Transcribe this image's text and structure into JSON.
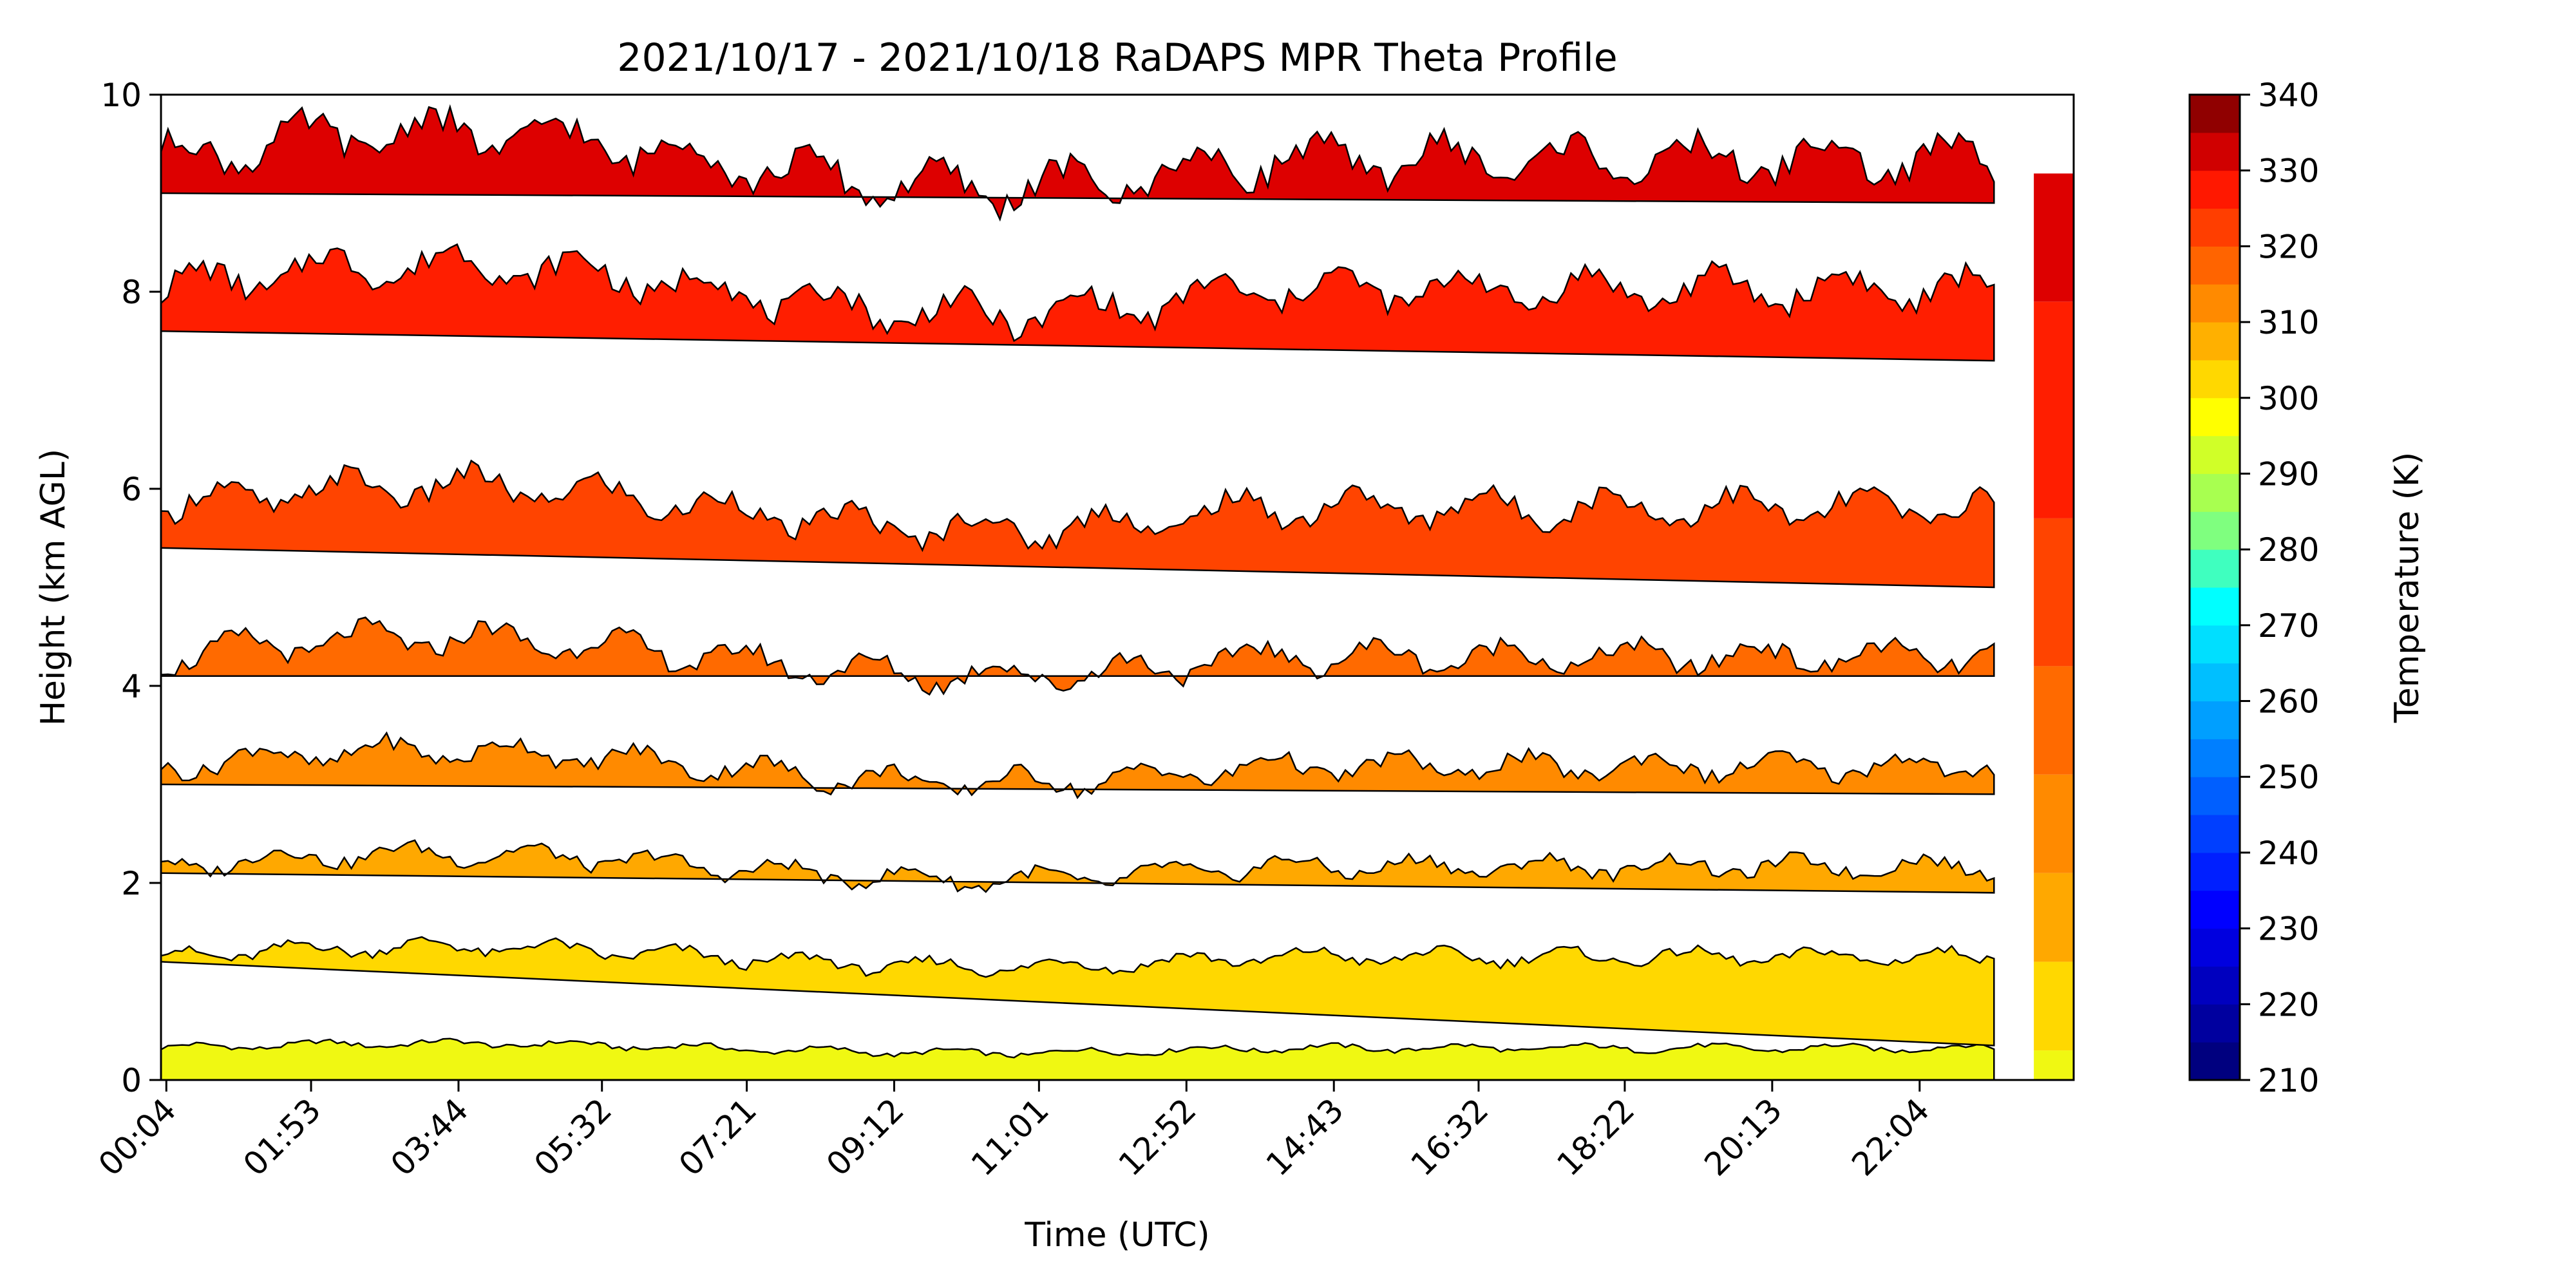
{
  "chart_data": {
    "type": "contour",
    "title": "2021/10/17 - 2021/10/18 RaDAPS MPR Theta Profile",
    "xlabel": "Time (UTC)",
    "ylabel": "Height (km AGL)",
    "xlim": [
      0,
      24
    ],
    "ylim": [
      0,
      10
    ],
    "x_ticks": [
      {
        "label": "00:04",
        "hour": 0.067
      },
      {
        "label": "01:53",
        "hour": 1.883
      },
      {
        "label": "03:44",
        "hour": 3.733
      },
      {
        "label": "05:32",
        "hour": 5.533
      },
      {
        "label": "07:21",
        "hour": 7.35
      },
      {
        "label": "09:12",
        "hour": 9.2
      },
      {
        "label": "11:01",
        "hour": 11.017
      },
      {
        "label": "12:52",
        "hour": 12.867
      },
      {
        "label": "14:43",
        "hour": 14.717
      },
      {
        "label": "16:32",
        "hour": 16.533
      },
      {
        "label": "18:22",
        "hour": 18.367
      },
      {
        "label": "20:13",
        "hour": 20.217
      },
      {
        "label": "22:04",
        "hour": 22.067
      }
    ],
    "y_ticks": [
      0,
      2,
      4,
      6,
      8,
      10
    ],
    "colorbar": {
      "label": "Temperature (K)",
      "min": 210,
      "max": 340,
      "ticks": [
        210,
        220,
        230,
        240,
        250,
        260,
        270,
        280,
        290,
        300,
        310,
        320,
        330,
        340
      ],
      "colors": [
        "#00007f",
        "#0000bf",
        "#0000ff",
        "#003fff",
        "#007fff",
        "#00bfff",
        "#00ffff",
        "#3fffbf",
        "#7fff7f",
        "#bfff3f",
        "#ffff00",
        "#ffbf00",
        "#ff7f00",
        "#ff3f00",
        "#ff0000",
        "#bf0000",
        "#9a0000",
        "#7f0000",
        "#7a0000",
        "#6a0000",
        "#5a0000",
        "#4a0000",
        "#3a0000",
        "#2a0000",
        "#1a0000",
        "#0a0000"
      ]
    },
    "contour_bands": [
      {
        "temperature": 295,
        "color": "#f0f812",
        "base_km": [
          0.0,
          0.0
        ],
        "top_km": 0.3
      },
      {
        "temperature": 300,
        "color": "#ffd800",
        "base_km": [
          1.2,
          0.35
        ],
        "top_km": 1.2
      },
      {
        "temperature": 305,
        "color": "#ffa800",
        "base_km": [
          2.1,
          1.9
        ],
        "top_km": 2.1
      },
      {
        "temperature": 310,
        "color": "#ff8a00",
        "base_km": [
          3.0,
          2.9
        ],
        "top_km": 3.1
      },
      {
        "temperature": 315,
        "color": "#ff6a00",
        "base_km": [
          4.1,
          4.1
        ],
        "top_km": 4.2
      },
      {
        "temperature": 320,
        "color": "#ff4400",
        "base_km": [
          5.4,
          5.0
        ],
        "top_km": 5.7
      },
      {
        "temperature": 325,
        "color": "#ff1e00",
        "base_km": [
          7.6,
          7.3
        ],
        "top_km": 7.9
      },
      {
        "temperature": 330,
        "color": "#dd0000",
        "base_km": [
          9.0,
          8.9
        ],
        "top_km": 9.2
      }
    ]
  }
}
